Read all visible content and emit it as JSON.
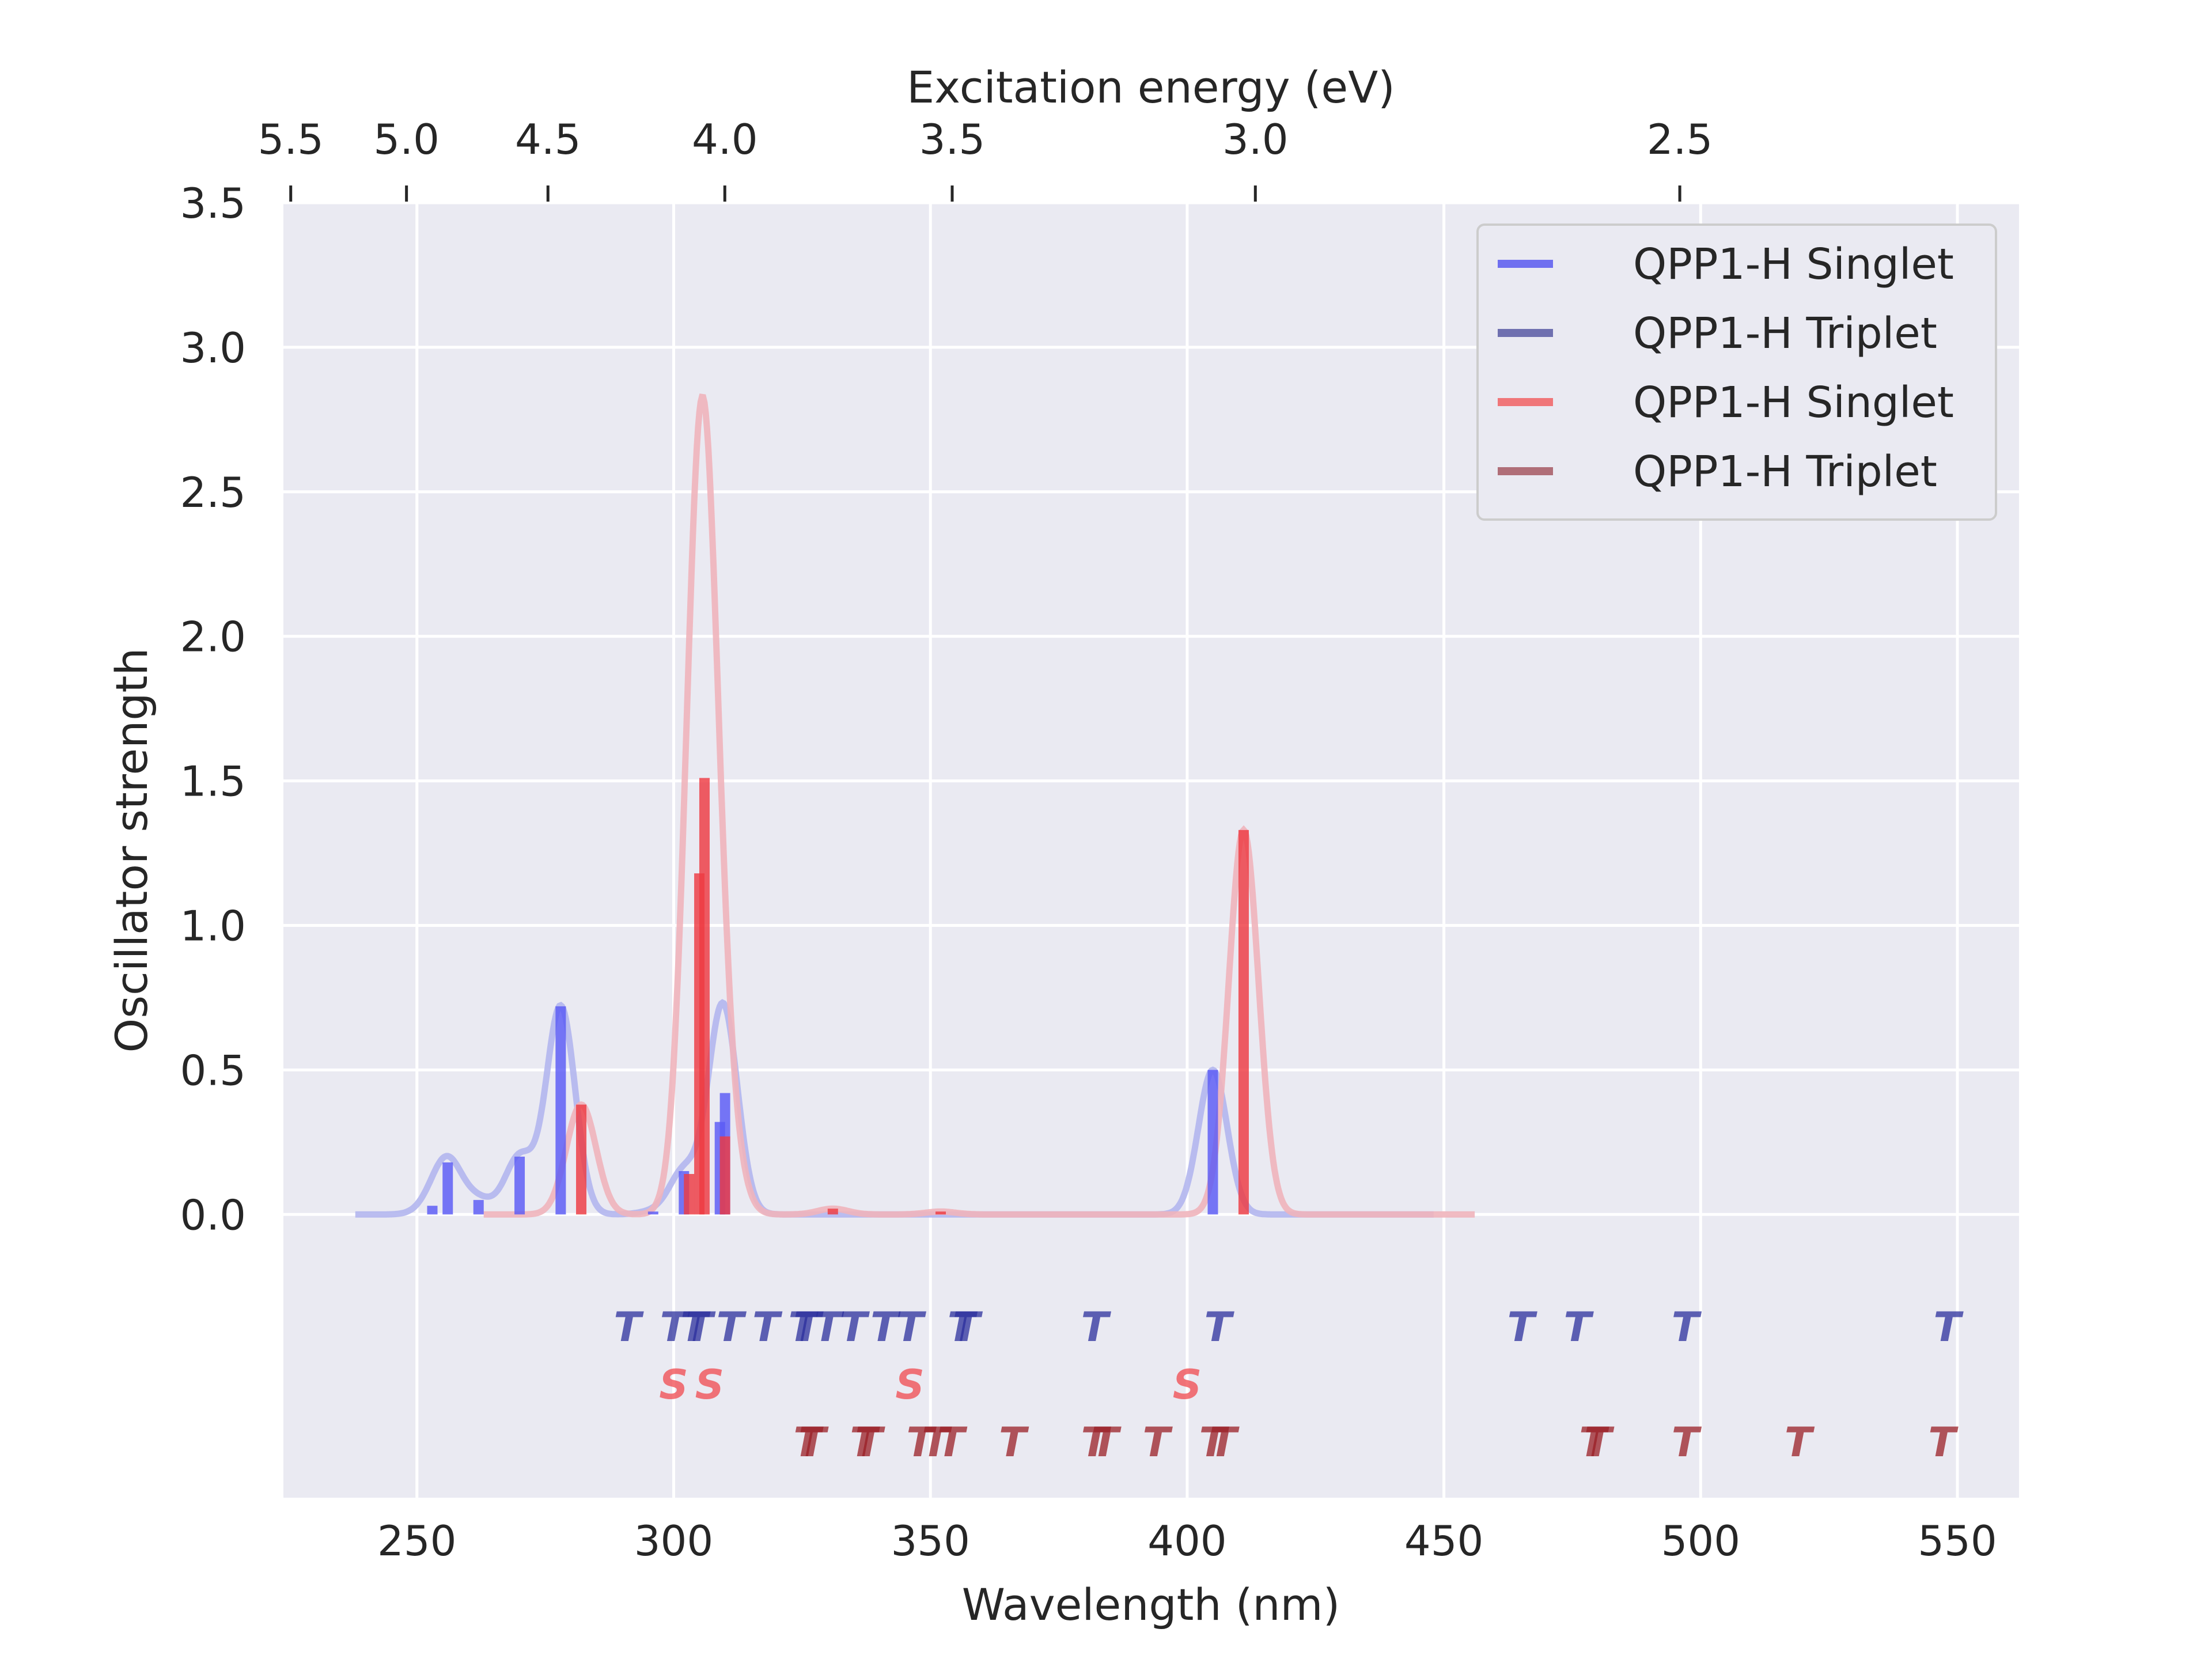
{
  "chart_data": {
    "type": "line",
    "title": "",
    "xlabel": "Wavelength (nm)",
    "ylabel": "Oscillator strength",
    "top_xlabel": "Excitation energy (eV)",
    "xlim": [
      224,
      562
    ],
    "ylim": [
      -0.98,
      3.5
    ],
    "x_ticks": [
      250,
      300,
      350,
      400,
      450,
      500,
      550
    ],
    "y_ticks": [
      0.0,
      0.5,
      1.0,
      1.5,
      2.0,
      2.5,
      3.0,
      3.5
    ],
    "x_tick_labels": [
      "250",
      "300",
      "350",
      "400",
      "450",
      "500",
      "550"
    ],
    "y_tick_labels": [
      "0.0",
      "0.5",
      "1.0",
      "1.5",
      "2.0",
      "2.5",
      "3.0",
      "3.5"
    ],
    "top_ticks_ev": [
      5.5,
      5.0,
      4.5,
      4.0,
      3.5,
      3.0,
      2.5
    ],
    "top_tick_labels": [
      "5.5",
      "5.0",
      "4.5",
      "4.0",
      "3.5",
      "3.0",
      "2.5"
    ],
    "grid": true,
    "legend_position": "top-right",
    "legend": [
      {
        "label": "QPP1-H Singlet",
        "color": "#6f6ff0"
      },
      {
        "label": "QPP1-H Triplet",
        "color": "#6f70b0"
      },
      {
        "label": "QPP1-H Singlet",
        "color": "#f07679"
      },
      {
        "label": "QPP1-H Triplet",
        "color": "#b06e78"
      }
    ],
    "series": [
      {
        "name": "QPP1-H Singlet",
        "color": "#5a5af5",
        "curve_color": "#b3b6ee",
        "range": [
          238,
          448
        ],
        "sigma": 2.8,
        "sticks": [
          {
            "x": 253,
            "f": 0.03
          },
          {
            "x": 256,
            "f": 0.18
          },
          {
            "x": 262,
            "f": 0.05
          },
          {
            "x": 270,
            "f": 0.2
          },
          {
            "x": 278,
            "f": 0.72
          },
          {
            "x": 296,
            "f": 0.01
          },
          {
            "x": 302,
            "f": 0.15
          },
          {
            "x": 309,
            "f": 0.32
          },
          {
            "x": 310,
            "f": 0.42
          },
          {
            "x": 405,
            "f": 0.5
          }
        ]
      },
      {
        "name": "QPP1-H Singlet",
        "color": "#ee3b42",
        "curve_color": "#efb4bb",
        "range": [
          263,
          456
        ],
        "sigma": 2.9,
        "sticks": [
          {
            "x": 282,
            "f": 0.38
          },
          {
            "x": 303,
            "f": 0.14
          },
          {
            "x": 305,
            "f": 1.18
          },
          {
            "x": 306,
            "f": 1.51
          },
          {
            "x": 310,
            "f": 0.27
          },
          {
            "x": 331,
            "f": 0.02
          },
          {
            "x": 352,
            "f": 0.01
          },
          {
            "x": 411,
            "f": 1.33
          }
        ]
      }
    ],
    "state_markers": [
      {
        "row": "blue-triplet",
        "label": "T",
        "color": "#2b2f9c",
        "x": [
          291,
          300,
          304,
          305,
          311,
          318,
          325,
          326,
          330,
          335,
          341,
          346,
          356,
          357,
          382,
          406,
          465,
          476,
          497,
          548
        ]
      },
      {
        "row": "red-singlet",
        "label": "S",
        "color": "#f0484e",
        "x": [
          300,
          307,
          346,
          400
        ]
      },
      {
        "row": "red-triplet",
        "label": "T",
        "color": "#9a1f26",
        "x": [
          326,
          327,
          337,
          338,
          348,
          351,
          354,
          366,
          382,
          384,
          394,
          405,
          407,
          479,
          480,
          497,
          519,
          547
        ]
      }
    ]
  }
}
